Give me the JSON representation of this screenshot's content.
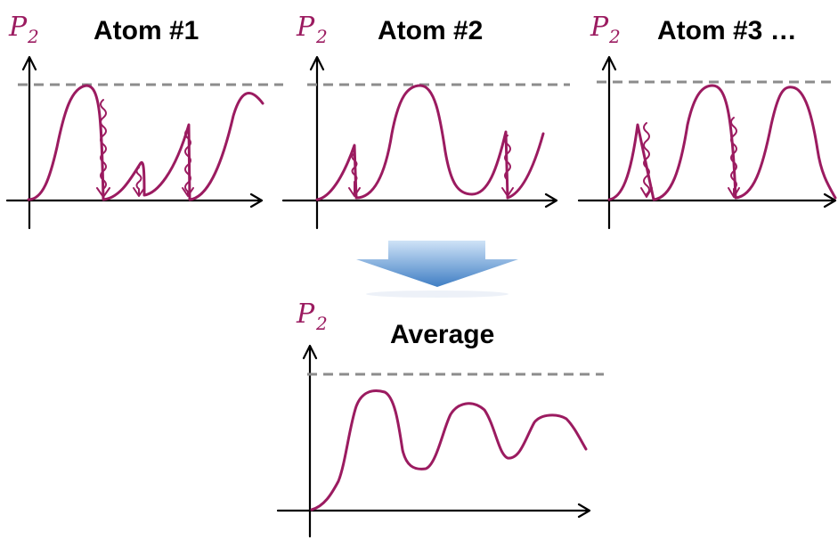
{
  "colors": {
    "curve": "#9b1b60",
    "dashed_line": "#8c8c8c",
    "axis": "#000000",
    "arrow_top": "#cfe3f7",
    "arrow_bottom": "#3f7ec4"
  },
  "axis_label": {
    "main": "P",
    "sub": "2"
  },
  "panels": {
    "atom1": {
      "title": "Atom #1"
    },
    "atom2": {
      "title": "Atom #2"
    },
    "atom3": {
      "title": "Atom #3 …"
    },
    "average": {
      "title": "Average"
    }
  },
  "icons": {
    "transition_arrow": "down-arrow-icon"
  }
}
